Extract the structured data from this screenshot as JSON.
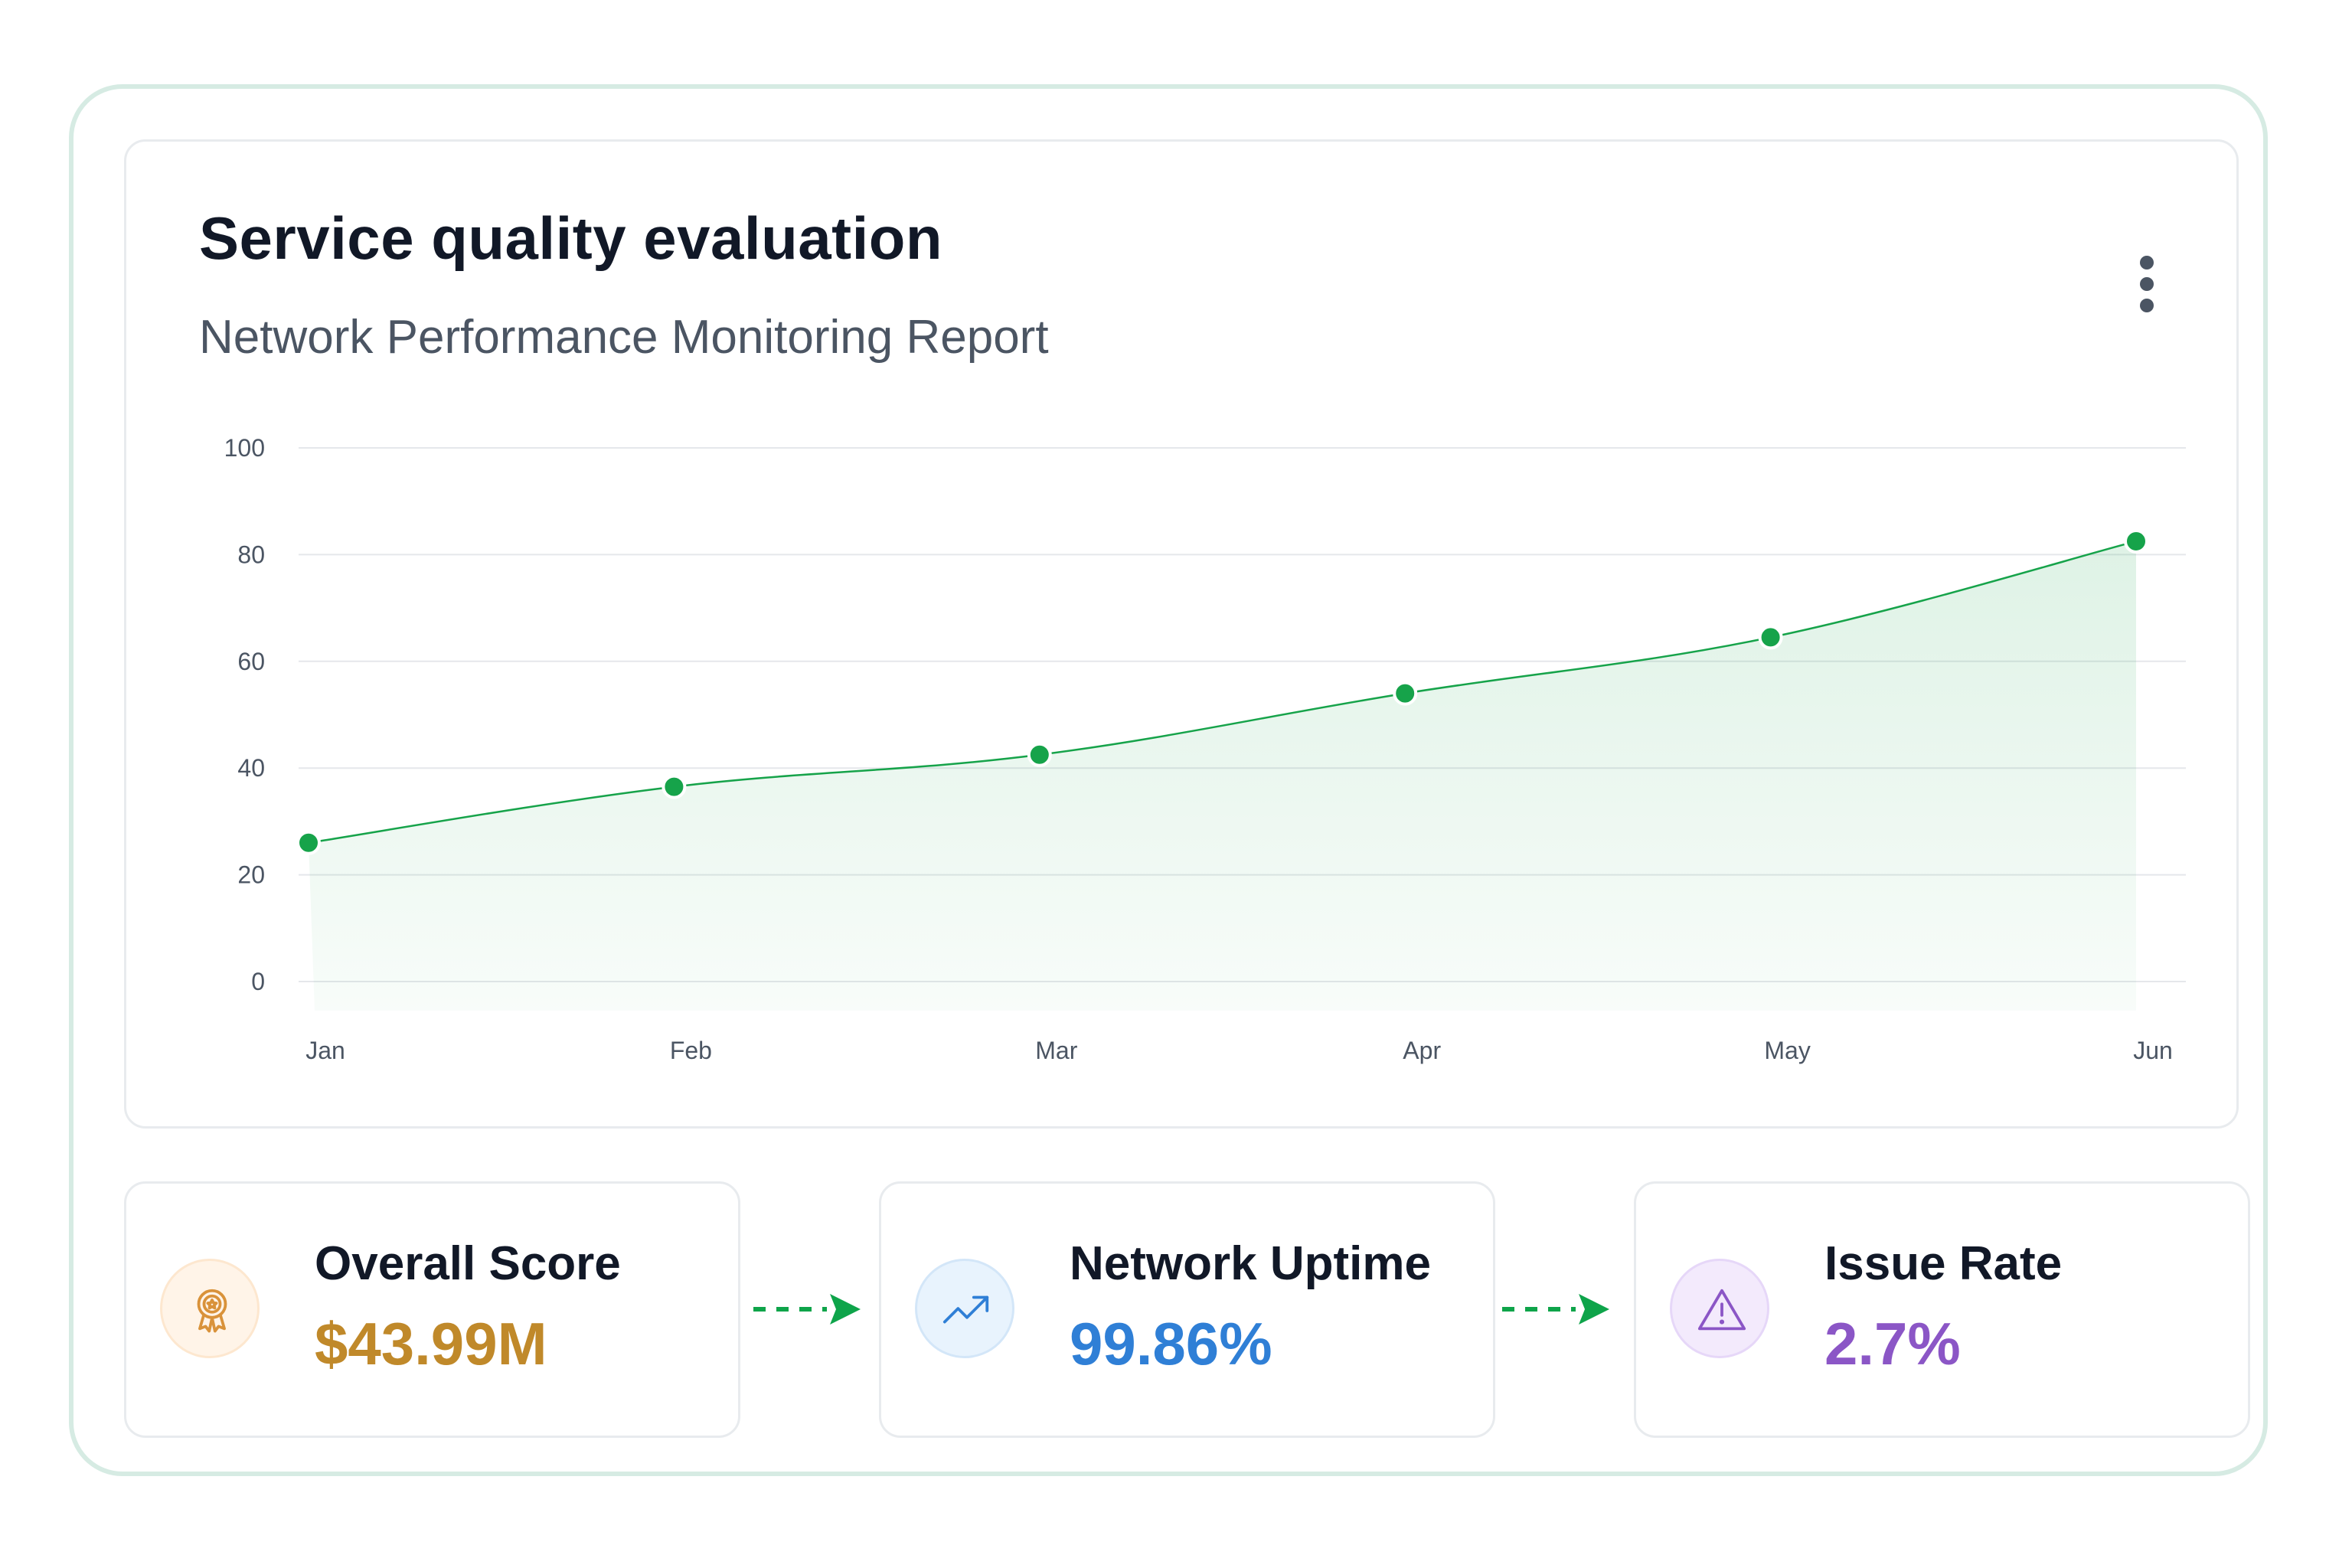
{
  "header": {
    "title": "Service quality evaluation",
    "subtitle": "Network Performance Monitoring Report",
    "menu_icon": "more-vertical-icon"
  },
  "chart_data": {
    "type": "area",
    "categories": [
      "Jan",
      "Feb",
      "Mar",
      "Apr",
      "May",
      "Jun"
    ],
    "series": [
      {
        "values": [
          26,
          36.5,
          42.5,
          54,
          64.5,
          82.5
        ],
        "color": "#16a34a"
      }
    ],
    "y_ticks": [
      "0",
      "20",
      "40",
      "60",
      "80",
      "100"
    ],
    "ylim": [
      0,
      100
    ],
    "grid": true,
    "legend": "none",
    "fill_color": "#16a34a"
  },
  "stats": [
    {
      "label": "Overall Score",
      "value": "$43.99M",
      "icon": "award-icon",
      "color": "#c0892a",
      "icon_bg": "#fff4e8"
    },
    {
      "label": "Network Uptime",
      "value": "99.86%",
      "icon": "trending-up-icon",
      "color": "#2f7fd6",
      "icon_bg": "#e8f3fd"
    },
    {
      "label": "Issue Rate",
      "value": "2.7%",
      "icon": "alert-triangle-icon",
      "color": "#8b56c6",
      "icon_bg": "#f3eafc"
    }
  ],
  "colors": {
    "frame_border": "#d6ebe3",
    "accent_green": "#16a34a",
    "arrow_green": "#0ea44a"
  }
}
